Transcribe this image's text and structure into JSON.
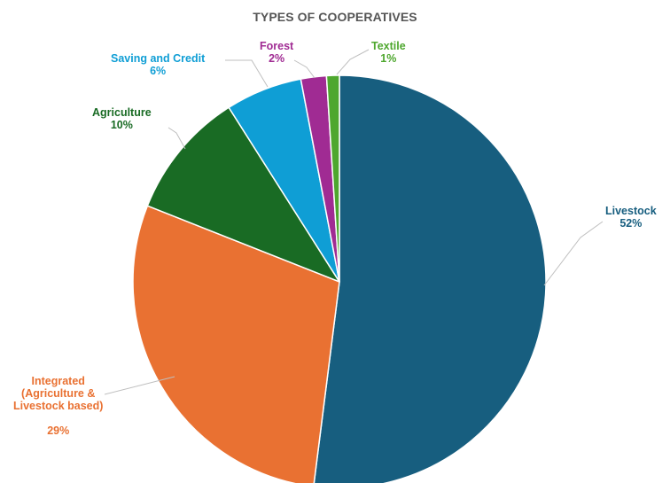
{
  "chart_data": {
    "type": "pie",
    "title": "TYPES OF COOPERATIVES",
    "slices": [
      {
        "label": "Livestock",
        "value": 52,
        "value_label": "52%",
        "color": "#175e7f"
      },
      {
        "label": "Integrated\n(Agriculture &\nLivestock based)",
        "value": 29,
        "value_label": "29%",
        "color": "#e97132"
      },
      {
        "label": "Agriculture",
        "value": 10,
        "value_label": "10%",
        "color": "#196b24"
      },
      {
        "label": "Saving and Credit",
        "value": 6,
        "value_label": "6%",
        "color": "#0f9ed5"
      },
      {
        "label": "Forest",
        "value": 2,
        "value_label": "2%",
        "color": "#a02b93"
      },
      {
        "label": "Textile",
        "value": 1,
        "value_label": "1%",
        "color": "#4ea72e"
      }
    ],
    "start": "12 o'clock",
    "direction": "clockwise",
    "label_line_color": "#bfbfbf",
    "background": "#ffffff",
    "legend": "none"
  }
}
